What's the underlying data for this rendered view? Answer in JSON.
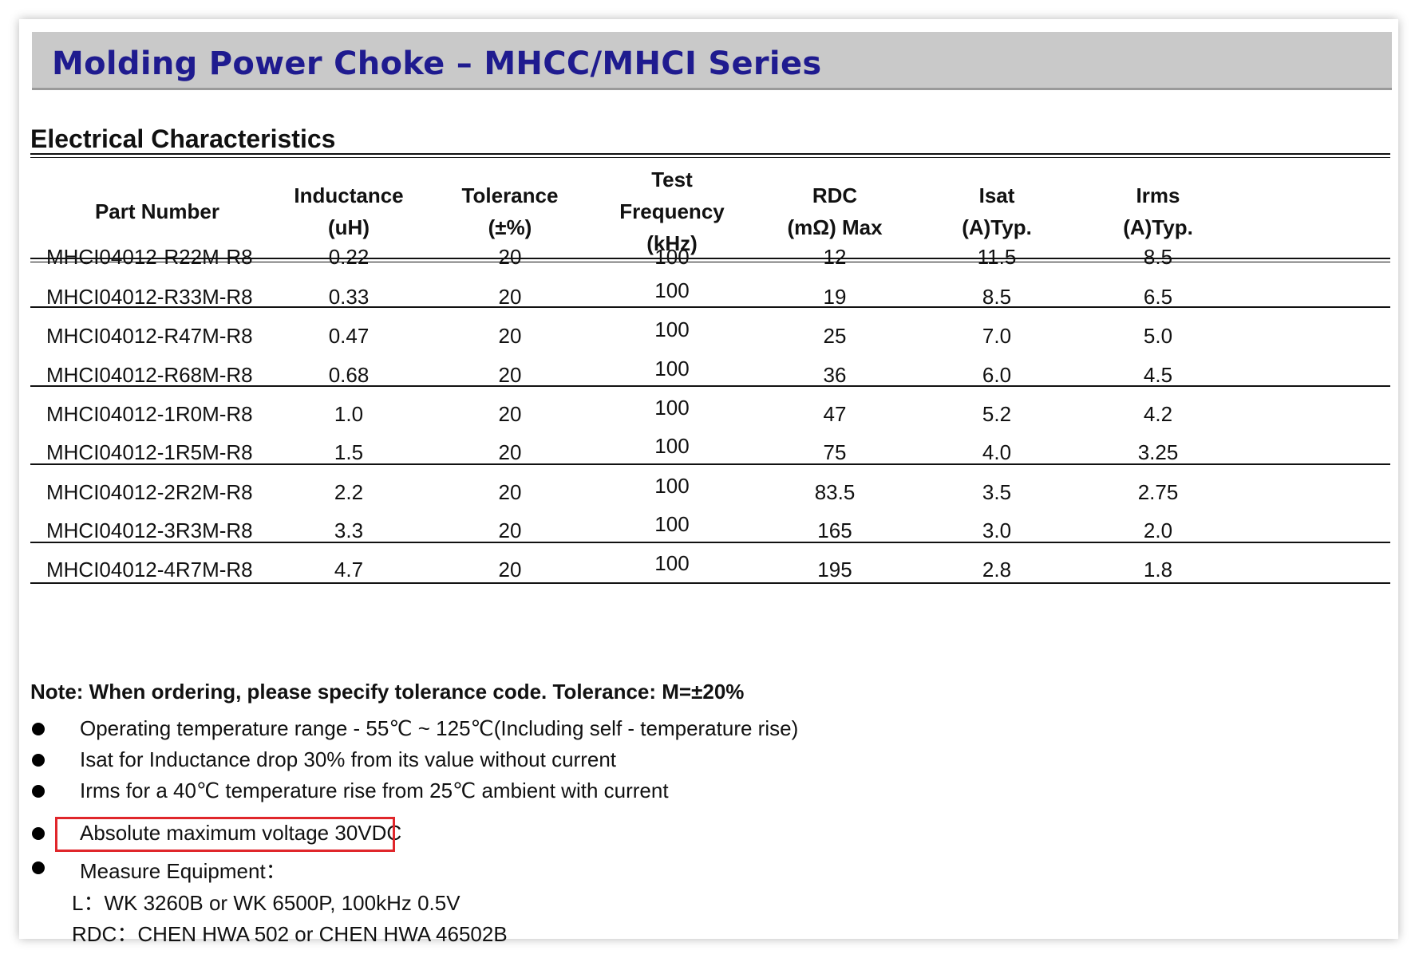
{
  "banner": {
    "title": "Molding Power Choke – MHCC/MHCI Series"
  },
  "section": {
    "title": "Electrical Characteristics"
  },
  "table": {
    "headers": [
      {
        "lines": [
          "Part Number"
        ]
      },
      {
        "lines": [
          "Inductance",
          "(uH)"
        ]
      },
      {
        "lines": [
          "Tolerance",
          "(±%)"
        ]
      },
      {
        "lines": [
          "Test",
          "Frequency",
          "(kHz)"
        ]
      },
      {
        "lines": [
          "RDC",
          "(mΩ) Max"
        ]
      },
      {
        "lines": [
          "Isat",
          "(A)Typ."
        ]
      },
      {
        "lines": [
          "Irms",
          "(A)Typ."
        ]
      }
    ],
    "rows": [
      [
        "MHCI04012-R22M-R8",
        "0.22",
        "20",
        "100",
        "12",
        "11.5",
        "8.5"
      ],
      [
        "MHCI04012-R33M-R8",
        "0.33",
        "20",
        "100",
        "19",
        "8.5",
        "6.5"
      ],
      [
        "MHCI04012-R47M-R8",
        "0.47",
        "20",
        "100",
        "25",
        "7.0",
        "5.0"
      ],
      [
        "MHCI04012-R68M-R8",
        "0.68",
        "20",
        "100",
        "36",
        "6.0",
        "4.5"
      ],
      [
        "MHCI04012-1R0M-R8",
        "1.0",
        "20",
        "100",
        "47",
        "5.2",
        "4.2"
      ],
      [
        "MHCI04012-1R5M-R8",
        "1.5",
        "20",
        "100",
        "75",
        "4.0",
        "3.25"
      ],
      [
        "MHCI04012-2R2M-R8",
        "2.2",
        "20",
        "100",
        "83.5",
        "3.5",
        "2.75"
      ],
      [
        "MHCI04012-3R3M-R8",
        "3.3",
        "20",
        "100",
        "165",
        "3.0",
        "2.0"
      ],
      [
        "MHCI04012-4R7M-R8",
        "4.7",
        "20",
        "100",
        "195",
        "2.8",
        "1.8"
      ]
    ]
  },
  "note": "Note: When ordering, please specify tolerance code. Tolerance: M=±20%",
  "bullets": [
    "Operating temperature range - 55℃ ~ 125℃(Including self - temperature rise)",
    "Isat for Inductance drop 30% from its value without current",
    "Irms for a 40℃  temperature rise from 25℃  ambient with current",
    "Absolute maximum voltage 30VDC",
    "Measure Equipment："
  ],
  "equipment": [
    "L：WK 3260B or WK 6500P, 100kHz 0.5V",
    "RDC：CHEN HWA 502 or CHEN HWA 46502B"
  ],
  "colors": {
    "banner_bg": "#c9c9c9",
    "banner_text": "#1f1b8f",
    "highlight_border": "#e0262b"
  }
}
